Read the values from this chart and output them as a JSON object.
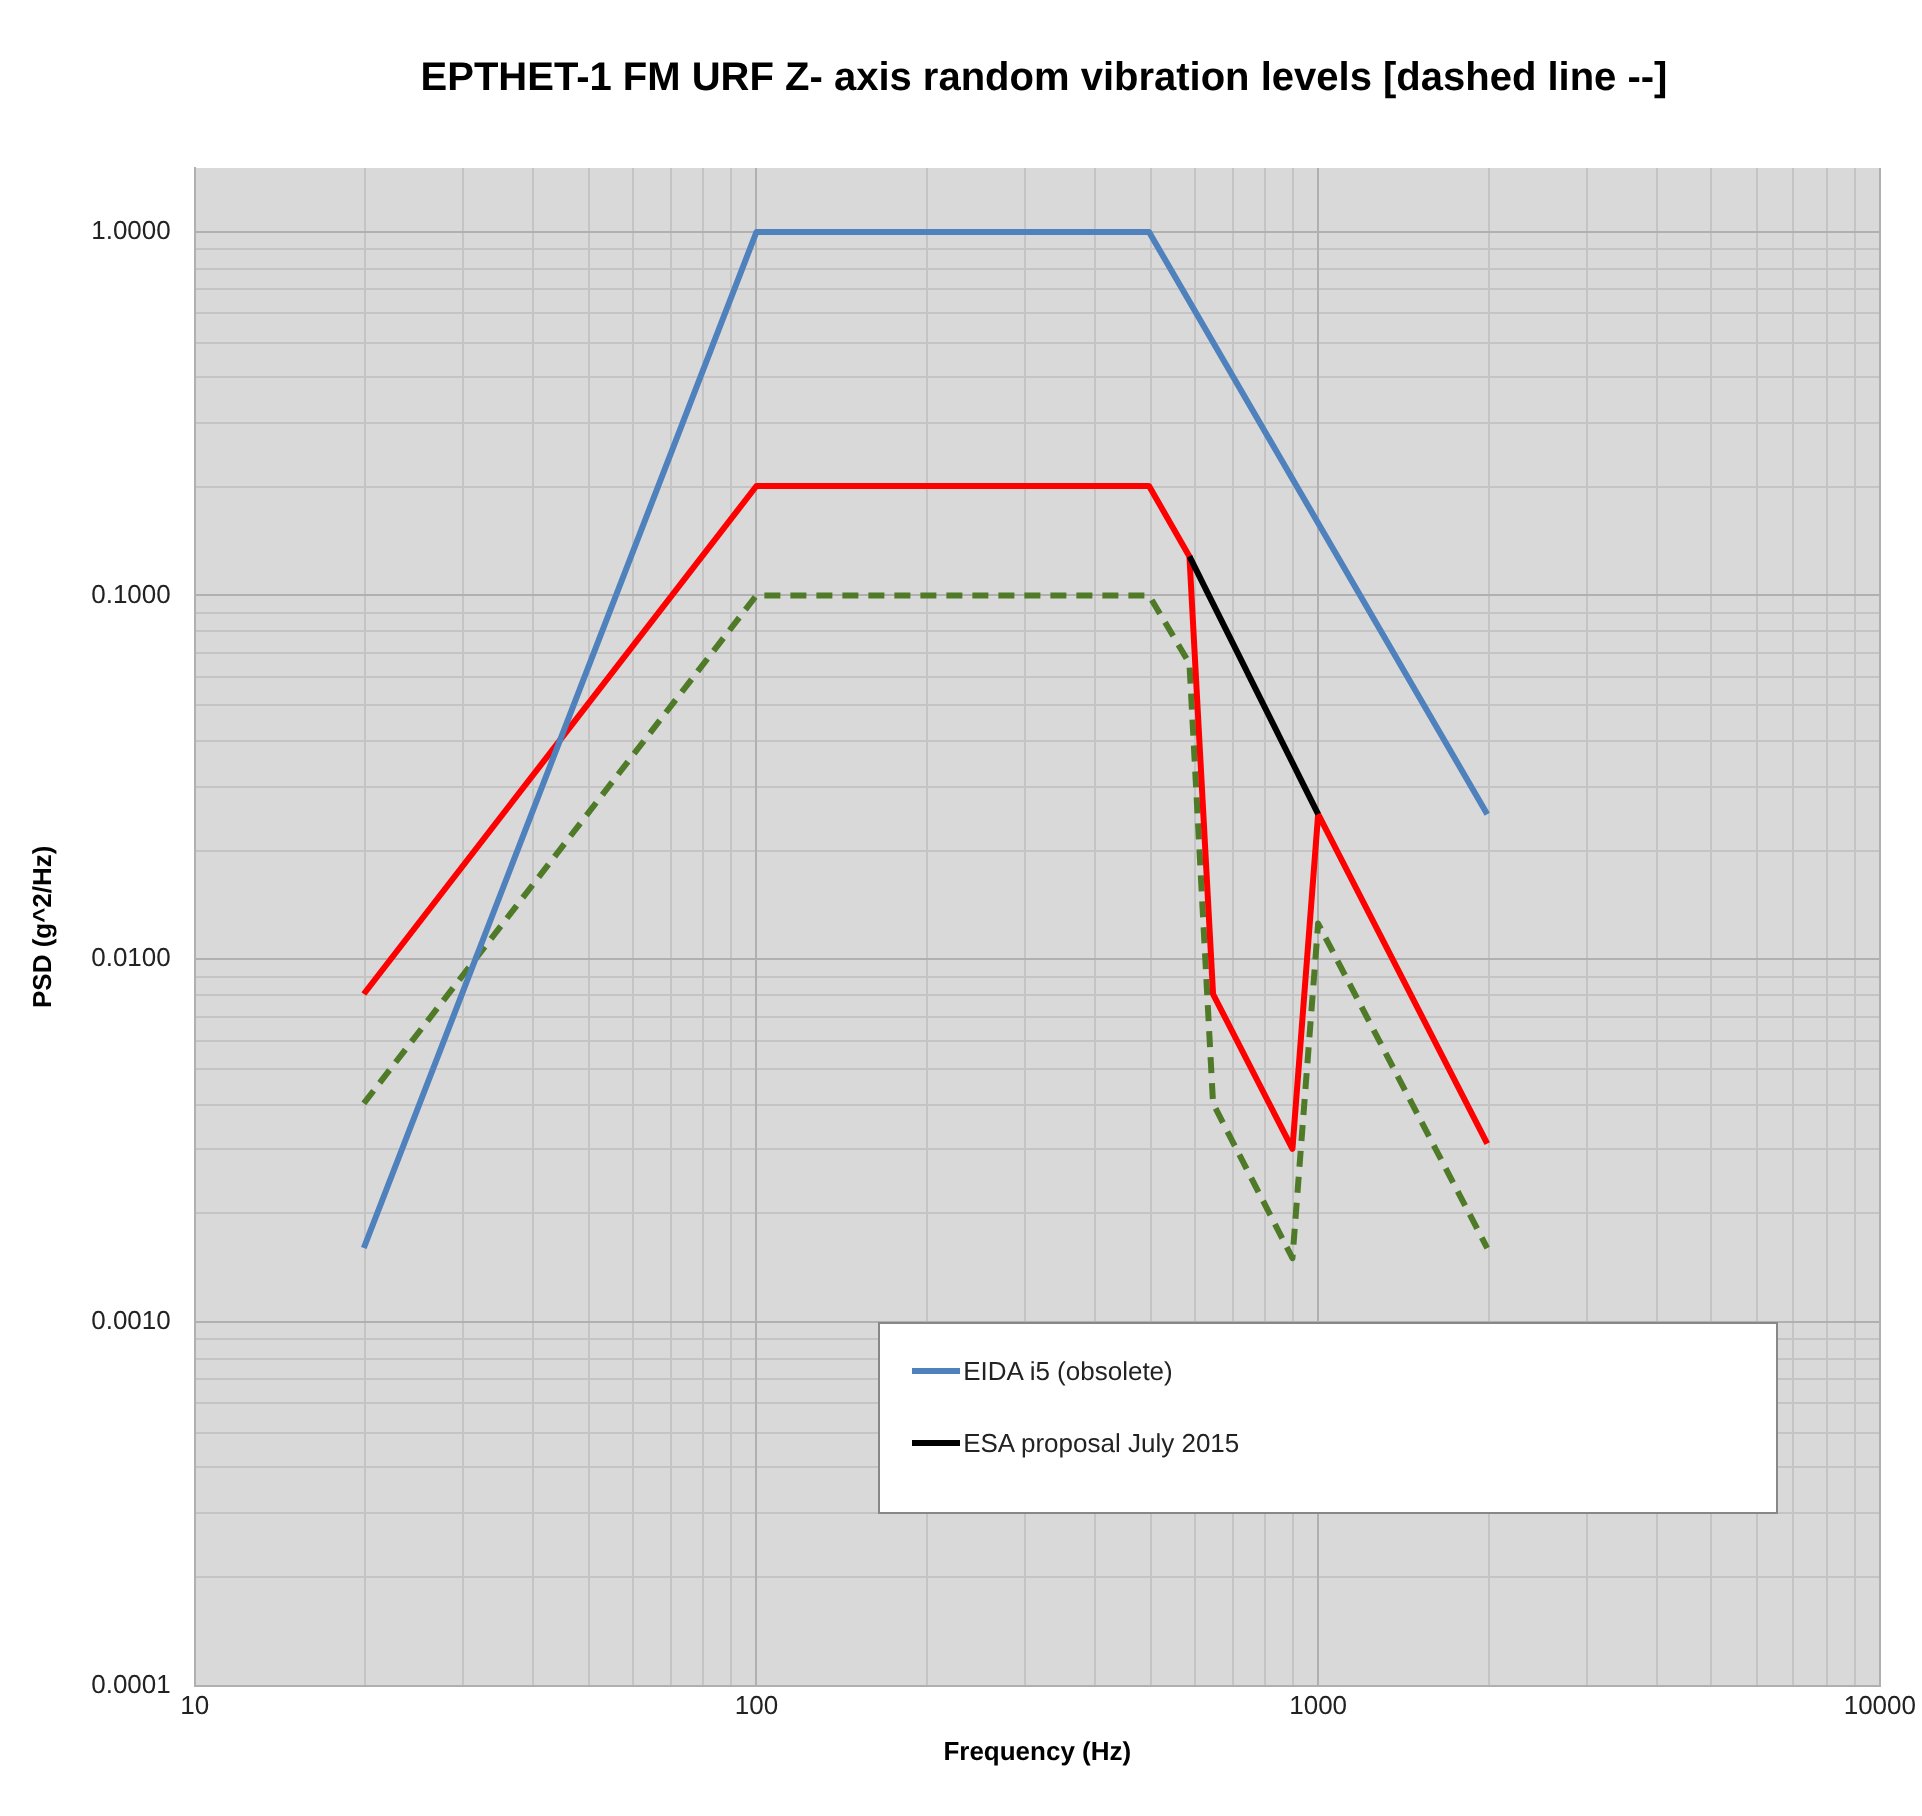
{
  "chart_data": {
    "type": "line",
    "title": "EPTHET-1 FM URF Z- axis random vibration levels [dashed line --]",
    "xlabel": "Frequency (Hz)",
    "ylabel": "PSD (g^2/Hz)",
    "log": "xy",
    "grid": true,
    "legend": "bottom",
    "marker": "none",
    "xlim": [
      10,
      10000
    ],
    "xticks": [
      10,
      100,
      1000,
      10000
    ],
    "ylim": [
      0.0001,
      1.5
    ],
    "yticks": [
      {
        "value": 0.0001,
        "label": "0.0001"
      },
      {
        "value": 0.001,
        "label": "0.0010"
      },
      {
        "value": 0.01,
        "label": "0.0100"
      },
      {
        "value": 0.1,
        "label": "0.1000"
      },
      {
        "value": 1,
        "label": "1.0000"
      }
    ],
    "series": [
      {
        "name": "EIDA i5 (obsolete)",
        "color": "#4f81bd",
        "x": [
          20,
          100,
          500,
          2000
        ],
        "values": [
          0.0016,
          1,
          1,
          0.025
        ]
      },
      {
        "name": "ESA proposal July 2015",
        "color": "#000000",
        "x": [
          590,
          1000
        ],
        "values": [
          0.128,
          0.025
        ]
      },
      {
        "color": "#ff0000",
        "x": [
          20,
          100,
          500,
          590,
          650,
          900,
          1000,
          2000
        ],
        "values": [
          0.008,
          0.2,
          0.2,
          0.128,
          0.008,
          0.003,
          0.025,
          0.0031
        ]
      },
      {
        "color": "#4f7a28",
        "line_style": "dashed",
        "x": [
          20,
          100,
          500,
          590,
          650,
          900,
          1000,
          2000
        ],
        "values": [
          0.004,
          0.1,
          0.1,
          0.065,
          0.004,
          0.0015,
          0.0125,
          0.0016
        ]
      }
    ]
  }
}
